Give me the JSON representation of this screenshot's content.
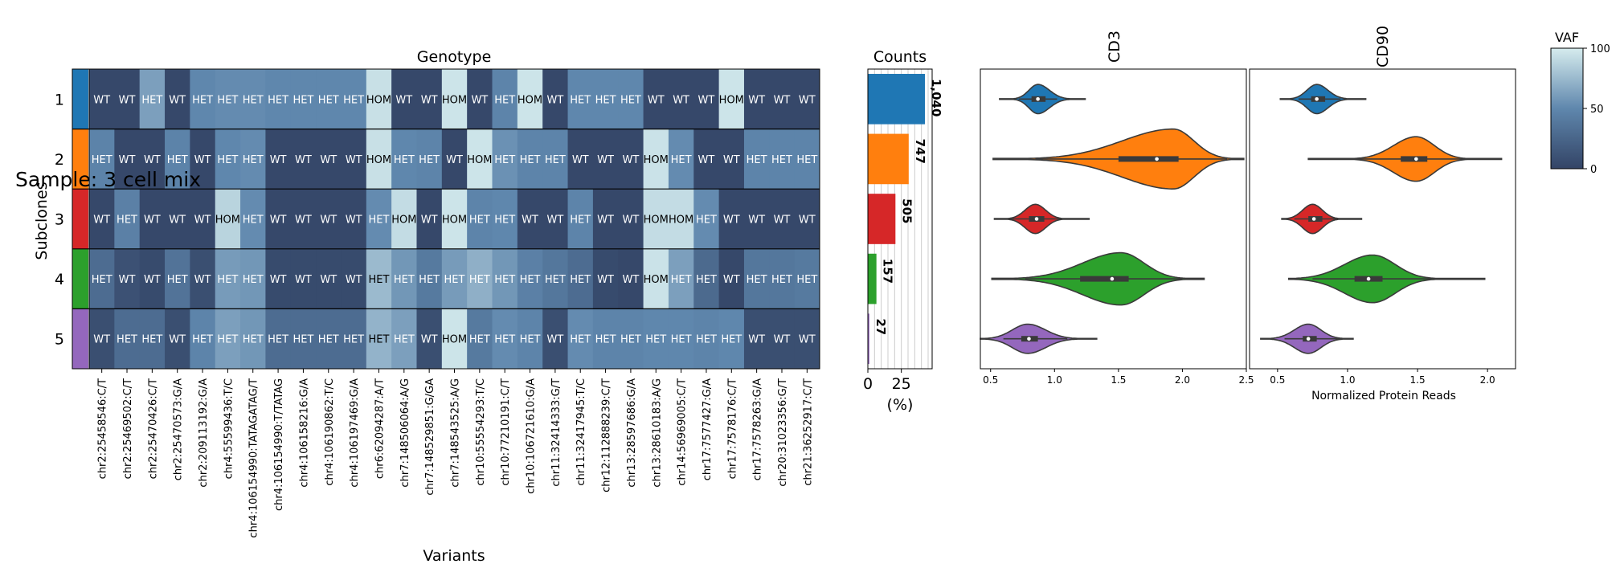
{
  "figure": {
    "suptitle": "Sample: 3 cell mix"
  },
  "chart_data": [
    {
      "type": "heatmap",
      "title": "Genotype",
      "xlabel": "Variants",
      "ylabel": "Subclones",
      "rows": [
        "1",
        "2",
        "3",
        "4",
        "5"
      ],
      "row_colors": [
        "#1f77b4",
        "#ff7f0e",
        "#d62728",
        "#2ca02c",
        "#9467bd"
      ],
      "columns": [
        "chr2:25458546:C/T",
        "chr2:25469502:C/T",
        "chr2:25470426:C/T",
        "chr2:25470573:G/A",
        "chr2:209113192:G/A",
        "chr4:55599436:T/C",
        "chr4:106154990:TATAGATAG/T",
        "chr4:106154990:T/TATAG",
        "chr4:106158216:G/A",
        "chr4:106190862:T/C",
        "chr4:106197469:G/A",
        "chr6:62094287:A/T",
        "chr7:148506064:A/G",
        "chr7:148529851:G/GA",
        "chr7:148543525:A/G",
        "chr10:55554293:T/C",
        "chr10:77210191:C/T",
        "chr10:106721610:G/A",
        "chr11:32414333:G/T",
        "chr11:32417945:T/C",
        "chr12:112888239:C/T",
        "chr13:28597686:G/A",
        "chr13:28610183:A/G",
        "chr14:56969005:C/T",
        "chr17:7577427:G/A",
        "chr17:7578176:C/T",
        "chr17:7578263:G/A",
        "chr20:31023356:G/T",
        "chr21:36252917:C/T"
      ],
      "labels": [
        [
          "WT",
          "WT",
          "HET",
          "WT",
          "HET",
          "HET",
          "HET",
          "HET",
          "HET",
          "HET",
          "HET",
          "HOM",
          "WT",
          "WT",
          "HOM",
          "WT",
          "HET",
          "HOM",
          "WT",
          "HET",
          "HET",
          "HET",
          "WT",
          "WT",
          "WT",
          "HOM",
          "WT",
          "WT",
          "WT"
        ],
        [
          "HET",
          "WT",
          "WT",
          "HET",
          "WT",
          "HET",
          "HET",
          "WT",
          "WT",
          "WT",
          "WT",
          "HOM",
          "HET",
          "HET",
          "WT",
          "HOM",
          "HET",
          "HET",
          "HET",
          "WT",
          "WT",
          "WT",
          "HOM",
          "HET",
          "WT",
          "WT",
          "HET",
          "HET",
          "HET"
        ],
        [
          "WT",
          "HET",
          "WT",
          "WT",
          "WT",
          "HOM",
          "HET",
          "WT",
          "WT",
          "WT",
          "WT",
          "HET",
          "HOM",
          "WT",
          "HOM",
          "HET",
          "HET",
          "WT",
          "WT",
          "HET",
          "WT",
          "WT",
          "HOM",
          "HOM",
          "HET",
          "WT",
          "WT",
          "WT",
          "WT"
        ],
        [
          "HET",
          "WT",
          "WT",
          "HET",
          "WT",
          "HET",
          "HET",
          "WT",
          "WT",
          "WT",
          "WT",
          "HET",
          "HET",
          "HET",
          "HET",
          "HET",
          "HET",
          "HET",
          "HET",
          "HET",
          "WT",
          "WT",
          "HOM",
          "HET",
          "HET",
          "WT",
          "HET",
          "HET",
          "HET"
        ],
        [
          "WT",
          "HET",
          "HET",
          "WT",
          "HET",
          "HET",
          "HET",
          "HET",
          "HET",
          "HET",
          "HET",
          "HET",
          "HET",
          "WT",
          "HOM",
          "HET",
          "HET",
          "HET",
          "WT",
          "HET",
          "HET",
          "HET",
          "HET",
          "HET",
          "HET",
          "HET",
          "WT",
          "WT",
          "WT"
        ]
      ],
      "vaf": [
        [
          3,
          3,
          62,
          3,
          50,
          52,
          52,
          50,
          50,
          50,
          50,
          94,
          3,
          3,
          96,
          3,
          48,
          96,
          3,
          50,
          50,
          50,
          3,
          3,
          3,
          96,
          3,
          3,
          3
        ],
        [
          47,
          3,
          3,
          47,
          3,
          50,
          52,
          3,
          3,
          3,
          3,
          94,
          50,
          48,
          3,
          96,
          55,
          48,
          48,
          3,
          3,
          3,
          95,
          52,
          3,
          3,
          48,
          48,
          48
        ],
        [
          3,
          45,
          3,
          3,
          3,
          88,
          52,
          3,
          3,
          3,
          3,
          52,
          92,
          3,
          96,
          48,
          50,
          3,
          3,
          48,
          3,
          3,
          92,
          92,
          52,
          3,
          3,
          3,
          3
        ],
        [
          30,
          10,
          5,
          35,
          8,
          60,
          58,
          5,
          5,
          5,
          5,
          75,
          58,
          40,
          60,
          70,
          58,
          45,
          38,
          30,
          5,
          3,
          95,
          62,
          28,
          3,
          38,
          38,
          40
        ],
        [
          8,
          30,
          30,
          8,
          48,
          62,
          58,
          30,
          30,
          30,
          30,
          72,
          62,
          8,
          96,
          40,
          52,
          48,
          8,
          52,
          48,
          48,
          50,
          50,
          48,
          50,
          8,
          8,
          8
        ]
      ],
      "colorbar": {
        "label": "VAF",
        "ticks": [
          0,
          50,
          100
        ]
      }
    },
    {
      "type": "bar",
      "title": "Counts",
      "xlabel": "(%)",
      "orientation": "horizontal",
      "categories": [
        "1",
        "2",
        "3",
        "4",
        "5"
      ],
      "values": [
        42.6,
        30.5,
        20.6,
        6.4,
        1.1
      ],
      "data_labels": [
        "1,040",
        "747",
        "505",
        "157",
        "27"
      ],
      "xticks": [
        0,
        25
      ],
      "colors": [
        "#1f77b4",
        "#ff7f0e",
        "#d62728",
        "#2ca02c",
        "#9467bd"
      ]
    },
    {
      "type": "violin",
      "title": "CD3",
      "xticks": [
        0.5,
        1.0,
        1.5,
        2.0,
        2.5
      ],
      "xlim": [
        0.42,
        2.5
      ],
      "series": [
        {
          "median": 0.87,
          "q1": 0.82,
          "q3": 0.93,
          "wlo": 0.72,
          "whi": 1.02,
          "min": 0.57,
          "max": 1.24,
          "mode": 0.87,
          "width": 0.38,
          "sl": 0.07,
          "sr": 0.09,
          "color": "#1f77b4"
        },
        {
          "median": 1.8,
          "q1": 1.5,
          "q3": 1.97,
          "wlo": 0.85,
          "whi": 2.35,
          "min": 0.52,
          "max": 2.48,
          "mode": 1.93,
          "width": 0.78,
          "sl": 0.4,
          "sr": 0.16,
          "color": "#ff7f0e"
        },
        {
          "median": 0.86,
          "q1": 0.8,
          "q3": 0.92,
          "wlo": 0.62,
          "whi": 1.07,
          "min": 0.53,
          "max": 1.27,
          "mode": 0.85,
          "width": 0.38,
          "sl": 0.08,
          "sr": 0.08,
          "color": "#d62728"
        },
        {
          "median": 1.45,
          "q1": 1.2,
          "q3": 1.58,
          "wlo": 0.77,
          "whi": 2.0,
          "min": 0.51,
          "max": 2.17,
          "mode": 1.52,
          "width": 0.68,
          "sl": 0.3,
          "sr": 0.18,
          "color": "#2ca02c"
        },
        {
          "median": 0.8,
          "q1": 0.74,
          "q3": 0.87,
          "wlo": 0.6,
          "whi": 1.1,
          "min": 0.42,
          "max": 1.33,
          "mode": 0.79,
          "width": 0.38,
          "sl": 0.12,
          "sr": 0.14,
          "color": "#9467bd"
        }
      ]
    },
    {
      "type": "violin",
      "title": "CD90",
      "xlabel": "Normalized Protein Reads",
      "xticks": [
        0.5,
        1.0,
        1.5,
        2.0
      ],
      "xlim": [
        0.3,
        2.2
      ],
      "series": [
        {
          "median": 0.78,
          "q1": 0.74,
          "q3": 0.84,
          "wlo": 0.65,
          "whi": 0.95,
          "min": 0.52,
          "max": 1.13,
          "mode": 0.78,
          "width": 0.38,
          "sl": 0.07,
          "sr": 0.08,
          "color": "#1f77b4"
        },
        {
          "median": 1.49,
          "q1": 1.38,
          "q3": 1.57,
          "wlo": 1.05,
          "whi": 1.85,
          "min": 0.72,
          "max": 2.1,
          "mode": 1.49,
          "width": 0.58,
          "sl": 0.16,
          "sr": 0.13,
          "color": "#ff7f0e"
        },
        {
          "median": 0.76,
          "q1": 0.72,
          "q3": 0.82,
          "wlo": 0.62,
          "whi": 0.92,
          "min": 0.53,
          "max": 1.1,
          "mode": 0.75,
          "width": 0.38,
          "sl": 0.07,
          "sr": 0.07,
          "color": "#d62728"
        },
        {
          "median": 1.15,
          "q1": 1.05,
          "q3": 1.25,
          "wlo": 0.75,
          "whi": 1.6,
          "min": 0.58,
          "max": 1.98,
          "mode": 1.18,
          "width": 0.62,
          "sl": 0.2,
          "sr": 0.16,
          "color": "#2ca02c"
        },
        {
          "median": 0.72,
          "q1": 0.68,
          "q3": 0.78,
          "wlo": 0.55,
          "whi": 0.95,
          "min": 0.38,
          "max": 1.04,
          "mode": 0.72,
          "width": 0.38,
          "sl": 0.1,
          "sr": 0.09,
          "color": "#9467bd"
        }
      ]
    }
  ]
}
